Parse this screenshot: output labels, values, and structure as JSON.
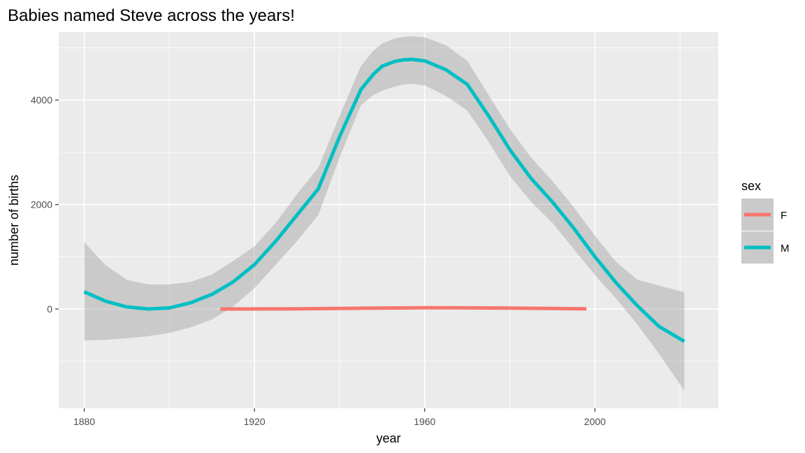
{
  "chart_data": {
    "type": "line",
    "title": "Babies named Steve across the years!",
    "xlabel": "year",
    "ylabel": "number of births",
    "xlim": [
      1874,
      2029
    ],
    "ylim": [
      -1900,
      5300
    ],
    "x_ticks": [
      1880,
      1920,
      1960,
      2000
    ],
    "x_tick_labels": [
      "1880",
      "1920",
      "1960",
      "2000"
    ],
    "y_ticks": [
      0,
      2000,
      4000
    ],
    "y_tick_labels": [
      "0",
      "2000",
      "4000"
    ],
    "grid": true,
    "legend": {
      "title": "sex",
      "position": "right",
      "entries": [
        {
          "label": "F",
          "color": "#F8766D"
        },
        {
          "label": "M",
          "color": "#00BFC4"
        }
      ]
    },
    "series": [
      {
        "name": "F",
        "color": "#F8766D",
        "x": [
          1912,
          1930,
          1945,
          1960,
          1975,
          1990,
          1998
        ],
        "y": [
          0,
          5,
          15,
          25,
          20,
          10,
          5
        ],
        "ci_low": [
          0,
          5,
          15,
          25,
          20,
          10,
          5
        ],
        "ci_high": [
          0,
          5,
          15,
          25,
          20,
          10,
          5
        ]
      },
      {
        "name": "M",
        "color": "#00BFC4",
        "x": [
          1880,
          1885,
          1890,
          1895,
          1900,
          1905,
          1910,
          1915,
          1920,
          1925,
          1930,
          1935,
          1940,
          1945,
          1948,
          1950,
          1953,
          1955,
          1957,
          1960,
          1965,
          1970,
          1975,
          1980,
          1985,
          1990,
          1995,
          2000,
          2005,
          2010,
          2015,
          2021
        ],
        "y": [
          330,
          150,
          40,
          0,
          20,
          120,
          280,
          520,
          850,
          1300,
          1800,
          2300,
          3300,
          4200,
          4500,
          4650,
          4740,
          4770,
          4780,
          4750,
          4580,
          4300,
          3700,
          3050,
          2500,
          2050,
          1550,
          1000,
          500,
          60,
          -330,
          -620
        ],
        "ci_low": [
          -600,
          -590,
          -560,
          -520,
          -460,
          -350,
          -200,
          50,
          400,
          850,
          1300,
          1800,
          2900,
          3900,
          4100,
          4180,
          4260,
          4300,
          4310,
          4280,
          4080,
          3800,
          3200,
          2550,
          2050,
          1650,
          1150,
          650,
          200,
          -300,
          -850,
          -1560
        ],
        "ci_high": [
          1280,
          840,
          560,
          470,
          470,
          520,
          660,
          920,
          1200,
          1650,
          2200,
          2700,
          3700,
          4650,
          4950,
          5080,
          5180,
          5210,
          5220,
          5200,
          5050,
          4750,
          4100,
          3450,
          2900,
          2450,
          1950,
          1400,
          900,
          560,
          450,
          320
        ]
      }
    ]
  }
}
